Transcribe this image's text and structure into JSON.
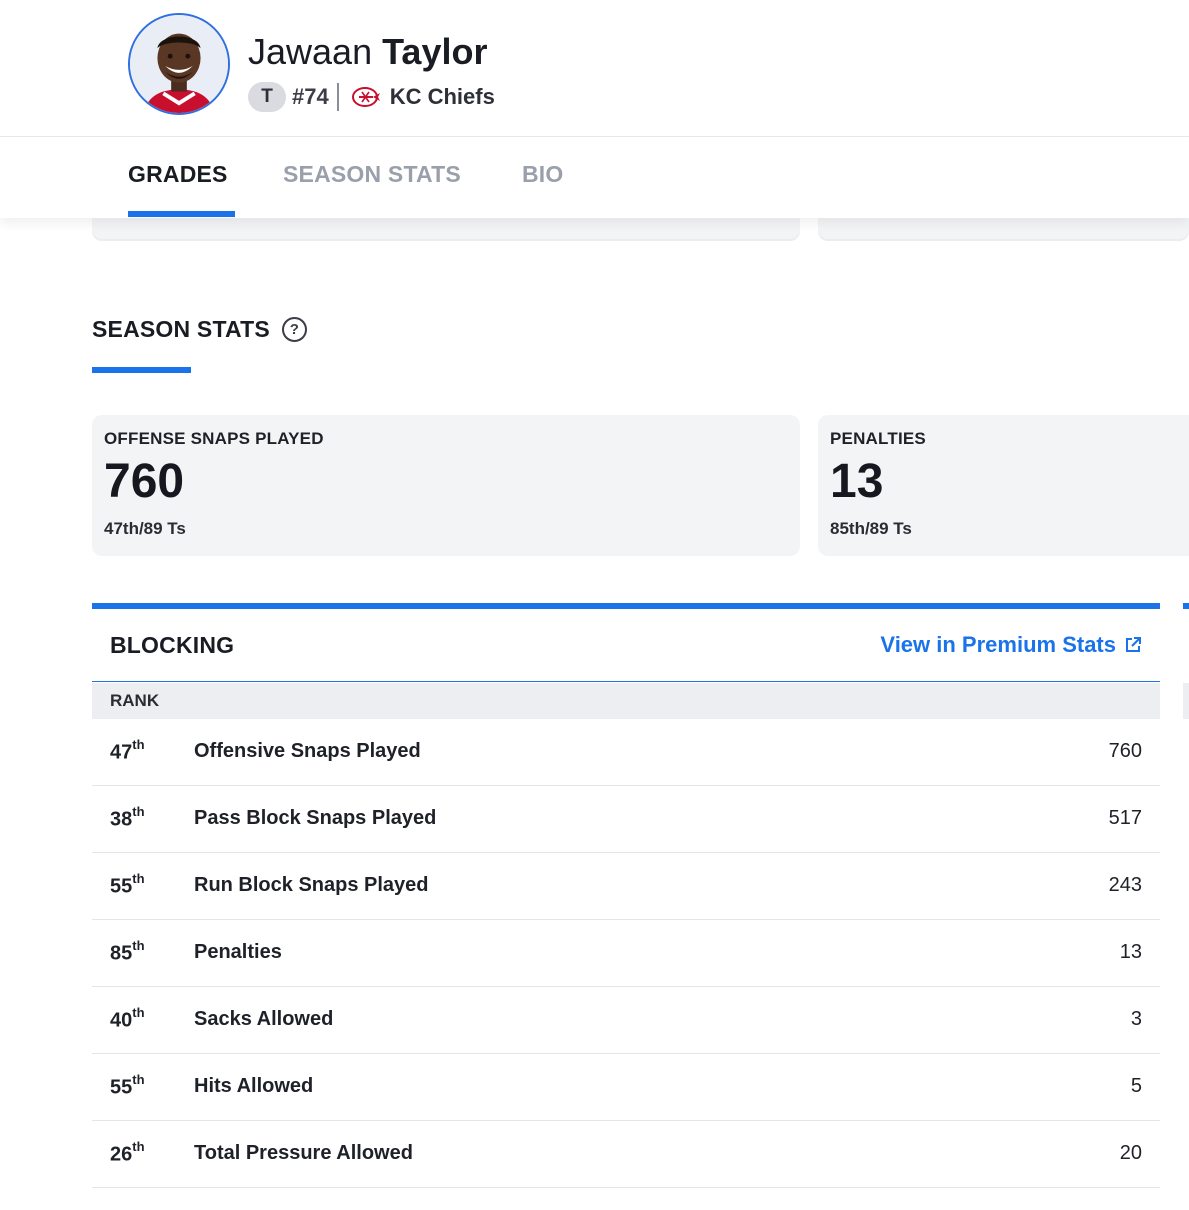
{
  "player": {
    "first_name": "Jawaan",
    "last_name": "Taylor",
    "position": "T",
    "jersey": "#74",
    "team": "KC Chiefs"
  },
  "tabs": [
    {
      "label": "GRADES",
      "active": true
    },
    {
      "label": "SEASON STATS",
      "active": false
    },
    {
      "label": "BIO",
      "active": false
    }
  ],
  "season_stats": {
    "title": "SEASON STATS",
    "help_icon": "question-circle-icon",
    "cards": [
      {
        "label": "OFFENSE SNAPS PLAYED",
        "value": "760",
        "rank": "47th/89 Ts"
      },
      {
        "label": "PENALTIES",
        "value": "13",
        "rank": "85th/89 Ts"
      }
    ]
  },
  "blocking": {
    "title": "BLOCKING",
    "premium_link": "View in Premium Stats",
    "rank_header": "RANK",
    "rows": [
      {
        "rank": "47",
        "suffix": "th",
        "label": "Offensive Snaps Played",
        "value": "760"
      },
      {
        "rank": "38",
        "suffix": "th",
        "label": "Pass Block Snaps Played",
        "value": "517"
      },
      {
        "rank": "55",
        "suffix": "th",
        "label": "Run Block Snaps Played",
        "value": "243"
      },
      {
        "rank": "85",
        "suffix": "th",
        "label": "Penalties",
        "value": "13"
      },
      {
        "rank": "40",
        "suffix": "th",
        "label": "Sacks Allowed",
        "value": "3"
      },
      {
        "rank": "55",
        "suffix": "th",
        "label": "Hits Allowed",
        "value": "5"
      },
      {
        "rank": "26",
        "suffix": "th",
        "label": "Total Pressure Allowed",
        "value": "20"
      }
    ]
  },
  "colors": {
    "accent": "#1a73e8",
    "card_bg": "#f3f4f6",
    "inactive_tab": "#9aa0ab"
  }
}
